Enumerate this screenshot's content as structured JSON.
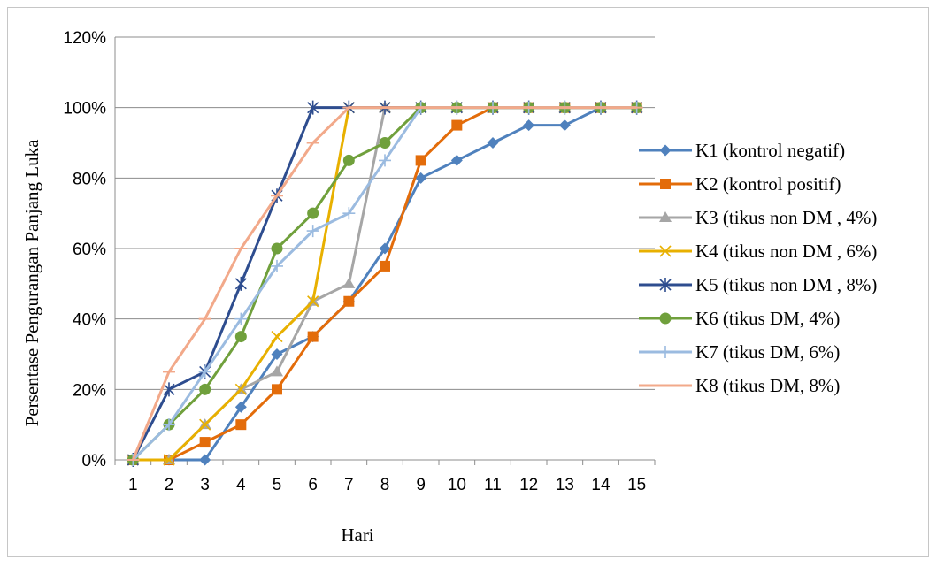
{
  "chart_data": {
    "type": "line",
    "title": "",
    "xlabel": "Hari",
    "ylabel": "Persentase Pengurangan Panjang Luka",
    "categories": [
      "1",
      "2",
      "3",
      "4",
      "5",
      "6",
      "7",
      "8",
      "9",
      "10",
      "11",
      "12",
      "13",
      "14",
      "15"
    ],
    "y_ticks": [
      "0%",
      "20%",
      "40%",
      "60%",
      "80%",
      "100%",
      "120%"
    ],
    "ylim": [
      0,
      120
    ],
    "grid": "horizontal",
    "legend_position": "right",
    "series": [
      {
        "name": "K1 (kontrol negatif)",
        "color": "#4f81bd",
        "marker": "diamond",
        "values": [
          0,
          0,
          0,
          15,
          30,
          35,
          45,
          60,
          80,
          85,
          90,
          95,
          95,
          100,
          100
        ]
      },
      {
        "name": "K2 (kontrol positif)",
        "color": "#e36c0a",
        "marker": "square",
        "values": [
          0,
          0,
          5,
          10,
          20,
          35,
          45,
          55,
          85,
          95,
          100,
          100,
          100,
          100,
          100
        ]
      },
      {
        "name": "K3 (tikus non DM , 4%)",
        "color": "#a6a6a6",
        "marker": "triangle",
        "values": [
          0,
          0,
          10,
          20,
          25,
          45,
          50,
          100,
          100,
          100,
          100,
          100,
          100,
          100,
          100
        ]
      },
      {
        "name": "K4 (tikus non DM , 6%)",
        "color": "#e8b000",
        "marker": "x",
        "values": [
          0,
          0,
          10,
          20,
          35,
          45,
          100,
          100,
          100,
          100,
          100,
          100,
          100,
          100,
          100
        ]
      },
      {
        "name": "K5 (tikus non DM , 8%)",
        "color": "#2e4d8f",
        "marker": "star",
        "values": [
          0,
          20,
          25,
          50,
          75,
          100,
          100,
          100,
          100,
          100,
          100,
          100,
          100,
          100,
          100
        ]
      },
      {
        "name": "K6 (tikus DM, 4%)",
        "color": "#70a03c",
        "marker": "circle",
        "values": [
          0,
          10,
          20,
          35,
          60,
          70,
          85,
          90,
          100,
          100,
          100,
          100,
          100,
          100,
          100
        ]
      },
      {
        "name": "K7 (tikus DM, 6%)",
        "color": "#9bbbe0",
        "marker": "plus",
        "values": [
          0,
          10,
          25,
          40,
          55,
          65,
          70,
          85,
          100,
          100,
          100,
          100,
          100,
          100,
          100
        ]
      },
      {
        "name": "K8 (tikus DM, 8%)",
        "color": "#f2a98a",
        "marker": "dash",
        "values": [
          0,
          25,
          40,
          60,
          75,
          90,
          100,
          100,
          100,
          100,
          100,
          100,
          100,
          100,
          100
        ]
      }
    ]
  }
}
